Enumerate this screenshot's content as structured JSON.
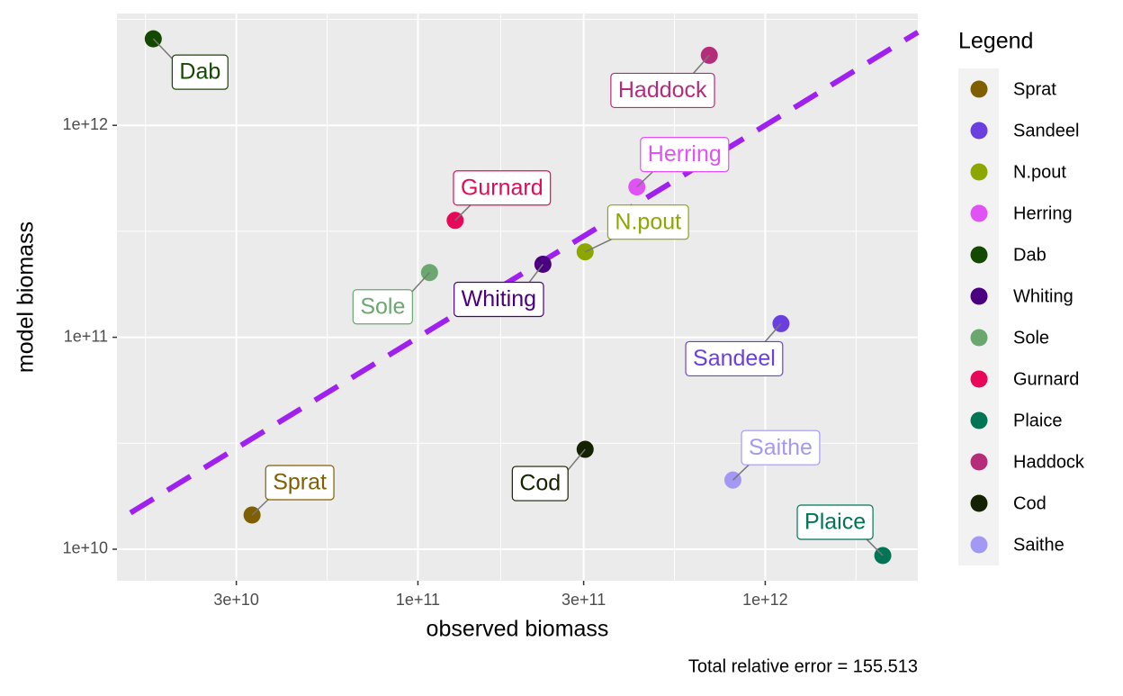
{
  "chart_data": {
    "type": "scatter",
    "x_label": "observed biomass",
    "y_label": "model biomass",
    "caption": "Total relative error = 155.513",
    "legend_title": "Legend",
    "log_x": true,
    "log_y": true,
    "grid": true,
    "legend_position": "right",
    "reference_line_color": "#a020f0",
    "xlim": [
      13600000000.0,
      2750000000000.0
    ],
    "ylim": [
      7100000000.0,
      3370000000000.0
    ],
    "xticks": [
      {
        "value": 30000000000.0,
        "label": "3e+10"
      },
      {
        "value": 100000000000.0,
        "label": "1e+11"
      },
      {
        "value": 300000000000.0,
        "label": "3e+11"
      },
      {
        "value": 1000000000000.0,
        "label": "1e+12"
      }
    ],
    "yticks": [
      {
        "value": 10000000000.0,
        "label": "1e+10"
      },
      {
        "value": 100000000000.0,
        "label": "1e+11"
      },
      {
        "value": 1000000000000.0,
        "label": "1e+12"
      }
    ],
    "series": [
      {
        "name": "Sprat",
        "color": "#7f5f00",
        "x": [
          33300000000.0
        ],
        "values": [
          14500000000.0
        ]
      },
      {
        "name": "Sandeel",
        "color": "#6a3fe0",
        "x": [
          1110000000000.0
        ],
        "values": [
          116000000000.0
        ]
      },
      {
        "name": "N.pout",
        "color": "#8da600",
        "x": [
          303000000000.0
        ],
        "values": [
          253000000000.0
        ]
      },
      {
        "name": "Herring",
        "color": "#e052f5",
        "x": [
          427000000000.0
        ],
        "values": [
          512000000000.0
        ]
      },
      {
        "name": "Dab",
        "color": "#144a00",
        "x": [
          17300000000.0
        ],
        "values": [
          2560000000000.0
        ]
      },
      {
        "name": "Whiting",
        "color": "#4a0080",
        "x": [
          229000000000.0
        ],
        "values": [
          221000000000.0
        ]
      },
      {
        "name": "Sole",
        "color": "#6aa870",
        "x": [
          108000000000.0
        ],
        "values": [
          202000000000.0
        ]
      },
      {
        "name": "Gurnard",
        "color": "#e8085a",
        "x": [
          128000000000.0
        ],
        "values": [
          356000000000.0
        ]
      },
      {
        "name": "Plaice",
        "color": "#007556",
        "x": [
          2180000000000.0
        ],
        "values": [
          9340000000.0
        ]
      },
      {
        "name": "Haddock",
        "color": "#b52d7a",
        "x": [
          690000000000.0
        ],
        "values": [
          2140000000000.0
        ]
      },
      {
        "name": "Cod",
        "color": "#142200",
        "x": [
          303000000000.0
        ],
        "values": [
          29600000000.0
        ]
      },
      {
        "name": "Saithe",
        "color": "#a399f5",
        "x": [
          807000000000.0
        ],
        "values": [
          21200000000.0
        ]
      }
    ]
  }
}
